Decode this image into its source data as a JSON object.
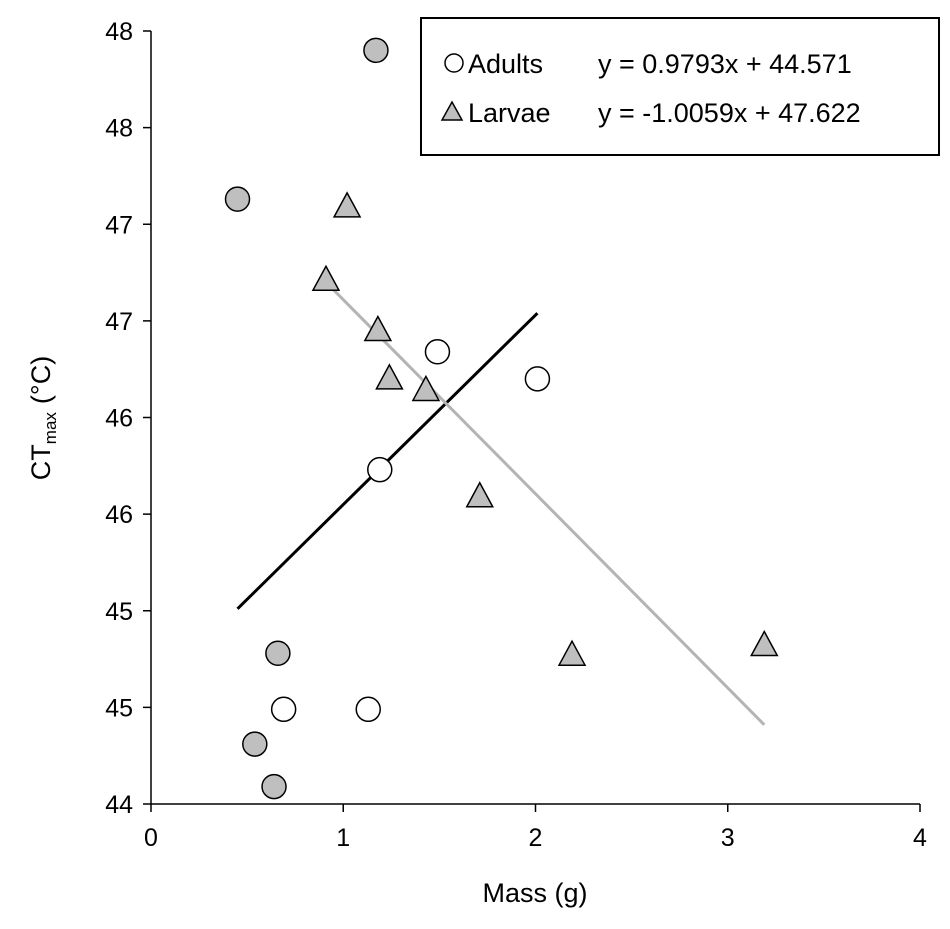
{
  "chart_data": {
    "type": "scatter",
    "xlabel": "Mass (g)",
    "ylabel_main": "CT",
    "ylabel_sub": "max",
    "ylabel_unit": "(°C)",
    "xlim": [
      0,
      4
    ],
    "ylim": [
      44,
      48
    ],
    "x_ticks": [
      "0",
      "1",
      "2",
      "3",
      "4"
    ],
    "y_ticks": [
      "44",
      "45",
      "45",
      "46",
      "46",
      "47",
      "47",
      "48",
      "48"
    ],
    "legend_position": "top-right",
    "series": [
      {
        "name": "Adults",
        "marker": "open-circle",
        "fit_equation": "y = 0.9793x + 44.571",
        "trend_color": "#000000",
        "points": [
          {
            "x": 0.69,
            "y": 44.49
          },
          {
            "x": 1.13,
            "y": 44.49
          },
          {
            "x": 1.19,
            "y": 45.73
          },
          {
            "x": 1.49,
            "y": 46.34
          },
          {
            "x": 2.01,
            "y": 46.2
          }
        ],
        "trend": {
          "x": [
            0.45,
            2.01
          ],
          "y": [
            45.01,
            46.54
          ]
        }
      },
      {
        "name": "Larvae",
        "marker": "filled-triangle",
        "fit_equation": "y = -1.0059x + 47.622",
        "trend_color": "#b4b4b4",
        "points": [
          {
            "x": 0.91,
            "y": 46.71
          },
          {
            "x": 1.02,
            "y": 47.09
          },
          {
            "x": 1.18,
            "y": 46.45
          },
          {
            "x": 1.24,
            "y": 46.2
          },
          {
            "x": 1.43,
            "y": 46.14
          },
          {
            "x": 1.71,
            "y": 45.59
          },
          {
            "x": 2.19,
            "y": 44.77
          },
          {
            "x": 3.19,
            "y": 44.82
          }
        ],
        "trend": {
          "x": [
            0.91,
            3.19
          ],
          "y": [
            46.7,
            44.41
          ]
        }
      },
      {
        "marker": "filled-circle",
        "points": [
          {
            "x": 1.17,
            "y": 47.9
          },
          {
            "x": 0.45,
            "y": 47.13
          },
          {
            "x": 0.66,
            "y": 44.78
          },
          {
            "x": 0.54,
            "y": 44.31
          },
          {
            "x": 0.64,
            "y": 44.09
          }
        ]
      }
    ]
  },
  "colors": {
    "marker_fill_gray": "#bfbfbf",
    "marker_fill_open": "#ffffff",
    "marker_stroke": "#000000"
  }
}
